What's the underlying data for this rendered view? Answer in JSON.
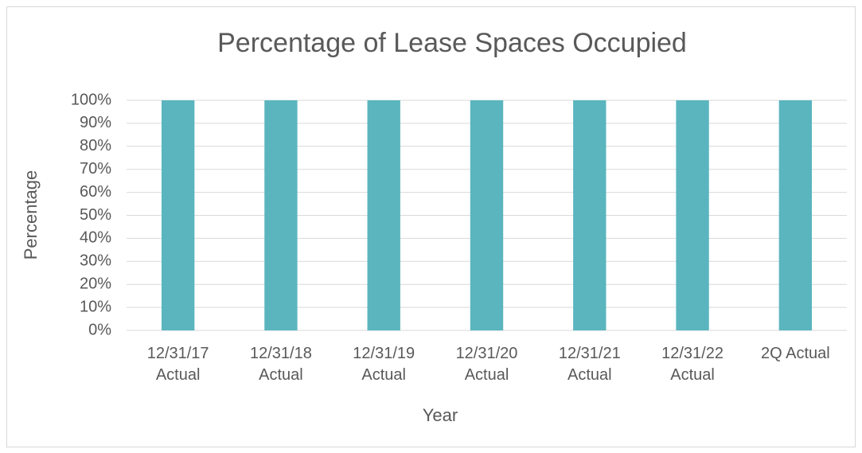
{
  "chart_data": {
    "type": "bar",
    "title": "Percentage of Lease Spaces Occupied",
    "x_label": "Year",
    "y_label": "Percentage",
    "categories": [
      "12/31/17 Actual",
      "12/31/18 Actual",
      "12/31/19 Actual",
      "12/31/20 Actual",
      "12/31/21 Actual",
      "12/31/22 Actual",
      "2Q Actual"
    ],
    "values": [
      100,
      100,
      100,
      100,
      100,
      100,
      100
    ],
    "color": "#5ab5bf",
    "ylim": [
      0,
      100
    ],
    "yticks": [
      {
        "value": 0,
        "label": "0%"
      },
      {
        "value": 10,
        "label": "10%"
      },
      {
        "value": 20,
        "label": "20%"
      },
      {
        "value": 30,
        "label": "30%"
      },
      {
        "value": 40,
        "label": "40%"
      },
      {
        "value": 50,
        "label": "50%"
      },
      {
        "value": 60,
        "label": "60%"
      },
      {
        "value": 70,
        "label": "70%"
      },
      {
        "value": 80,
        "label": "80%"
      },
      {
        "value": 90,
        "label": "90%"
      },
      {
        "value": 100,
        "label": "100%"
      }
    ],
    "grid": true
  }
}
